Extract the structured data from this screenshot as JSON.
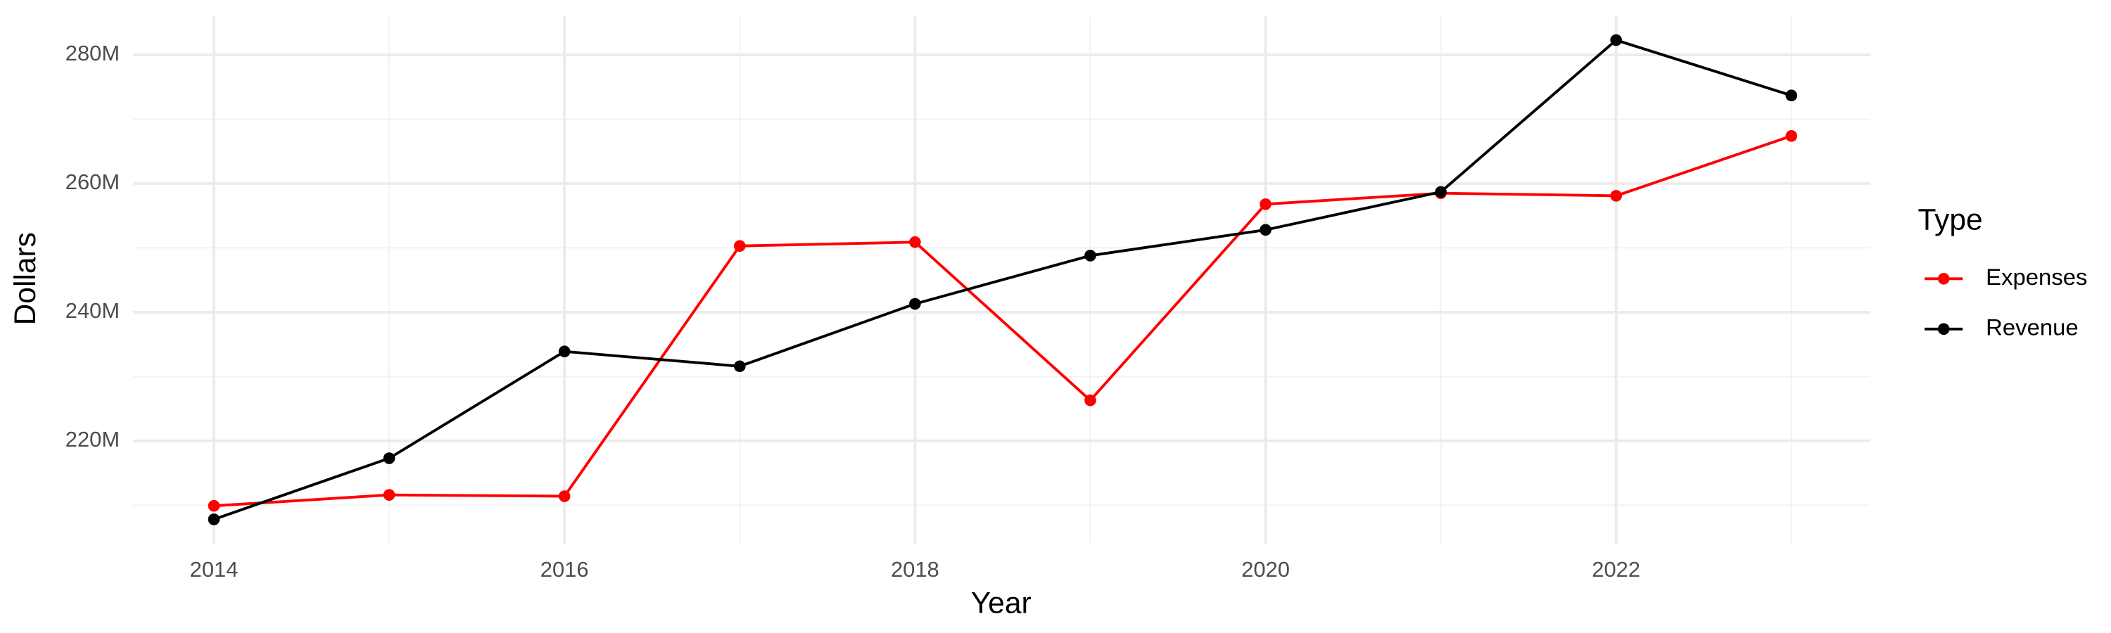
{
  "chart_data": {
    "type": "line",
    "x_label": "Year",
    "y_label": "Dollars",
    "legend_title": "Type",
    "legend_position": "right",
    "grid": true,
    "x": [
      2014,
      2015,
      2016,
      2017,
      2018,
      2019,
      2020,
      2021,
      2022,
      2023
    ],
    "series": [
      {
        "name": "Expenses",
        "color": "#ff0000",
        "values": [
          209900000,
          211600000,
          211400000,
          250300000,
          250900000,
          226300000,
          256800000,
          258500000,
          258100000,
          267400000
        ]
      },
      {
        "name": "Revenue",
        "color": "#000000",
        "values": [
          207800000,
          217300000,
          233900000,
          231600000,
          241300000,
          248800000,
          252800000,
          258700000,
          282300000,
          273700000
        ]
      }
    ],
    "xlim": [
      2013.54,
      2023.45
    ],
    "xticks": [
      2014,
      2016,
      2018,
      2020,
      2022
    ],
    "ylim": [
      204000000,
      286000000
    ],
    "yticks": [
      {
        "value": 220000000,
        "label": "220M"
      },
      {
        "value": 240000000,
        "label": "240M"
      },
      {
        "value": 260000000,
        "label": "260M"
      },
      {
        "value": 280000000,
        "label": "280M"
      }
    ]
  }
}
